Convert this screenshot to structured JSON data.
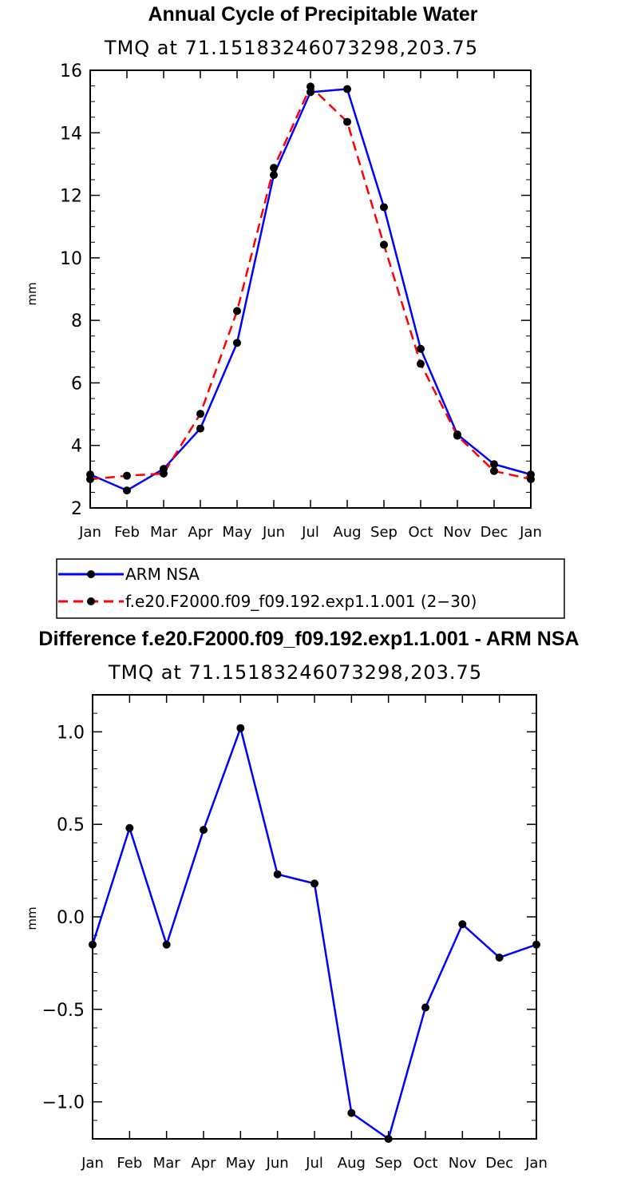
{
  "chart_data": [
    {
      "type": "line",
      "title": "Annual Cycle of Precipitable Water",
      "subtitle": "TMQ  at  71.15183246073298,203.75",
      "xlabel": "",
      "ylabel": "mm",
      "categories": [
        "Jan",
        "Feb",
        "Mar",
        "Apr",
        "May",
        "Jun",
        "Jul",
        "Aug",
        "Sep",
        "Oct",
        "Nov",
        "Dec",
        "Jan"
      ],
      "ylim": [
        2,
        16
      ],
      "yticks": [
        2,
        4,
        6,
        8,
        10,
        12,
        14,
        16
      ],
      "ytick_labels": [
        "2",
        "4",
        "6",
        "8",
        "10",
        "12",
        "14",
        "16"
      ],
      "series": [
        {
          "name": "ARM NSA",
          "color": "#0000ff",
          "style": "solid",
          "values": [
            3.07,
            2.56,
            3.25,
            4.54,
            7.28,
            12.65,
            15.3,
            15.4,
            11.62,
            7.09,
            4.35,
            3.4,
            3.07
          ]
        },
        {
          "name": "f.e20.F2000.f09_f09.192.exp1.1.001 (2−30)",
          "color": "#ff0000",
          "style": "dashed",
          "values": [
            2.92,
            3.03,
            3.1,
            5.01,
            8.3,
            12.88,
            15.48,
            14.35,
            10.42,
            6.61,
            4.31,
            3.18,
            2.92
          ]
        }
      ]
    },
    {
      "type": "line",
      "title": "Difference f.e20.F2000.f09_f09.192.exp1.1.001 - ARM NSA",
      "subtitle": "TMQ  at  71.15183246073298,203.75",
      "xlabel": "",
      "ylabel": "mm",
      "categories": [
        "Jan",
        "Feb",
        "Mar",
        "Apr",
        "May",
        "Jun",
        "Jul",
        "Aug",
        "Sep",
        "Oct",
        "Nov",
        "Dec",
        "Jan"
      ],
      "ylim": [
        -1.2,
        1.2
      ],
      "yticks": [
        -1.0,
        -0.5,
        0.0,
        0.5,
        1.0
      ],
      "ytick_labels": [
        "−1.0",
        "−0.5",
        "0.0",
        "0.5",
        "1.0"
      ],
      "series": [
        {
          "name": "difference",
          "color": "#0000ff",
          "style": "solid",
          "values": [
            -0.15,
            0.48,
            -0.15,
            0.47,
            1.02,
            0.23,
            0.18,
            -1.06,
            -1.2,
            -0.49,
            -0.04,
            -0.22,
            -0.15
          ]
        }
      ]
    }
  ]
}
